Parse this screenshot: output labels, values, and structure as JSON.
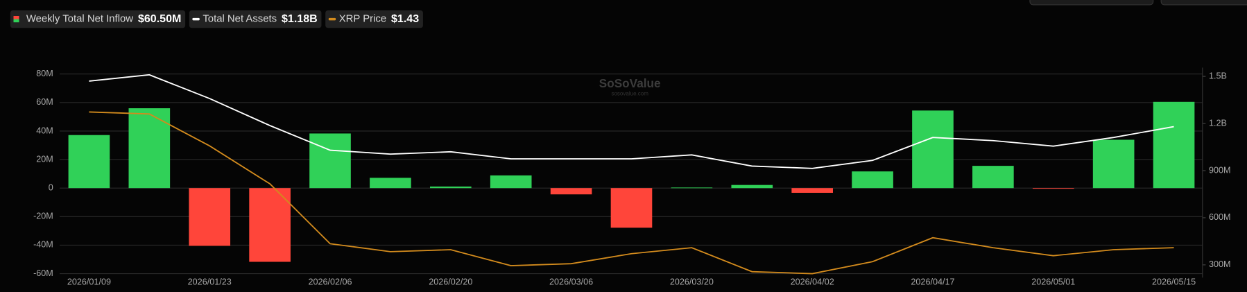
{
  "chart_data": {
    "type": "bar-line",
    "watermark": "SoSoValue",
    "watermark_sub": "sosovalue.com",
    "categories": [
      "2026/01/09",
      null,
      "2026/01/23",
      null,
      "2026/02/06",
      null,
      "2026/02/20",
      null,
      "2026/03/06",
      null,
      "2026/03/20",
      null,
      "2026/04/02",
      null,
      "2026/04/17",
      null,
      "2026/05/01",
      null,
      "2026/05/15"
    ],
    "series": [
      {
        "name": "Weekly Total Net Inflow",
        "latest_label": "$60.50M",
        "type": "bar",
        "axis": "y",
        "color": "#30d158",
        "negative_color": "#ff453a",
        "values": [
          37200000,
          56000000,
          -40500000,
          -51700000,
          38300000,
          7200000,
          1100000,
          8900000,
          -4400000,
          -27800000,
          400000,
          2200000,
          -3300000,
          11700000,
          54400000,
          15600000,
          -300000,
          33900000,
          60500000
        ]
      },
      {
        "name": "Total Net Assets",
        "latest_label": "$1.18B",
        "type": "line",
        "axis": "y2",
        "color": "#ffffff",
        "values": [
          1470000000,
          1510000000,
          1359000000,
          1187000000,
          1030000000,
          1005000000,
          1020000000,
          975000000,
          975000000,
          975000000,
          1000000000,
          929000000,
          914000000,
          965000000,
          1111000000,
          1091000000,
          1056000000,
          1111000000,
          1180000000
        ]
      },
      {
        "name": "XRP Price",
        "latest_label": "$1.43",
        "type": "line",
        "axis": "y3",
        "color": "#d38b1d",
        "values": [
          2.11,
          2.1,
          1.94,
          1.75,
          1.45,
          1.41,
          1.42,
          1.34,
          1.35,
          1.4,
          1.43,
          1.31,
          1.3,
          1.36,
          1.48,
          1.43,
          1.39,
          1.42,
          1.43
        ]
      }
    ],
    "ylim": [
      -60000000,
      80000000
    ],
    "yticks": [
      {
        "value": 80000000,
        "label": "80M"
      },
      {
        "value": 60000000,
        "label": "60M"
      },
      {
        "value": 40000000,
        "label": "40M"
      },
      {
        "value": 20000000,
        "label": "20M"
      },
      0,
      {
        "value": -20000000,
        "label": "-20M"
      },
      {
        "value": -40000000,
        "label": "-40M"
      },
      {
        "value": -60000000,
        "label": "-60M"
      }
    ],
    "y2lim": [
      244000000,
      1515000000
    ],
    "y2ticks": [
      {
        "value": 1500000000,
        "label": "1.5B"
      },
      {
        "value": 1200000000,
        "label": "1.2B"
      },
      {
        "value": 900000000,
        "label": "900M"
      },
      {
        "value": 600000000,
        "label": "600M"
      },
      {
        "value": 300000000,
        "label": "300M"
      }
    ],
    "y3lim": [
      1.3,
      2.3
    ],
    "grid": true
  }
}
